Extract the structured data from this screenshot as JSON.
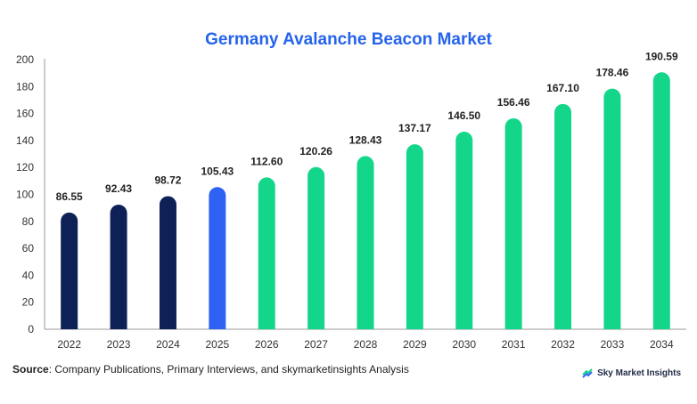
{
  "chart_data": {
    "type": "bar",
    "title": "Germany Avalanche Beacon Market",
    "categories": [
      "2022",
      "2023",
      "2024",
      "2025",
      "2026",
      "2027",
      "2028",
      "2029",
      "2030",
      "2031",
      "2032",
      "2033",
      "2034"
    ],
    "values": [
      86.55,
      92.43,
      98.72,
      105.43,
      112.6,
      120.26,
      128.43,
      137.17,
      146.5,
      156.46,
      167.1,
      178.46,
      190.59
    ],
    "value_labels": [
      "86.55",
      "92.43",
      "98.72",
      "105.43",
      "112.60",
      "120.26",
      "128.43",
      "137.17",
      "146.50",
      "156.46",
      "167.10",
      "178.46",
      "190.59"
    ],
    "bar_colors": [
      "#0d2157",
      "#0d2157",
      "#0d2157",
      "#2f62f2",
      "#14d68a",
      "#14d68a",
      "#14d68a",
      "#14d68a",
      "#14d68a",
      "#14d68a",
      "#14d68a",
      "#14d68a",
      "#14d68a"
    ],
    "ylim": [
      0,
      200
    ],
    "yticks": [
      "0",
      "20",
      "40",
      "60",
      "80",
      "100",
      "120",
      "140",
      "160",
      "180",
      "200"
    ],
    "grid": false,
    "xlabel": "",
    "ylabel": ""
  },
  "footer": {
    "source_label": "Source",
    "source_text": ": Company Publications, Primary Interviews, and skymarketinsights Analysis",
    "brand": "Sky Market Insights"
  },
  "colors": {
    "title": "#2563eb",
    "historical": "#0d2157",
    "current": "#2f62f2",
    "forecast": "#14d68a"
  }
}
